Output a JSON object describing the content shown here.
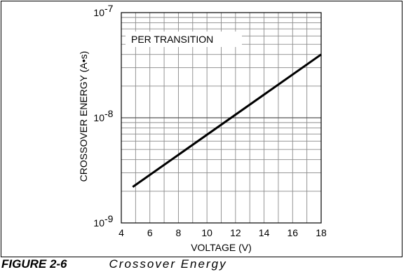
{
  "caption": {
    "figure_label": "FIGURE 2-6",
    "text": "Crossover Energy"
  },
  "chart_data": {
    "type": "line",
    "title": "",
    "xlabel": "VOLTAGE (V)",
    "ylabel": "CROSSOVER ENERGY (A•s)",
    "xscale": "linear",
    "yscale": "log",
    "xlim": [
      4,
      18
    ],
    "ylim": [
      1e-09,
      1e-07
    ],
    "grid": true,
    "x_ticks": [
      4,
      6,
      8,
      10,
      12,
      14,
      16,
      18
    ],
    "x_tick_labels": [
      "4",
      "6",
      "8",
      "10",
      "12",
      "14",
      "16",
      "18"
    ],
    "y_ticks": [
      {
        "value": 1e-09,
        "base": "10",
        "exp": "-9"
      },
      {
        "value": 1e-08,
        "base": "10",
        "exp": "-8"
      },
      {
        "value": 1e-07,
        "base": "10",
        "exp": "-7"
      }
    ],
    "annotations": [
      {
        "text": "PER TRANSITION"
      }
    ],
    "series": [
      {
        "x": [
          4.8,
          18
        ],
        "y": [
          2.2e-09,
          4e-08
        ],
        "color": "#000000"
      }
    ]
  }
}
